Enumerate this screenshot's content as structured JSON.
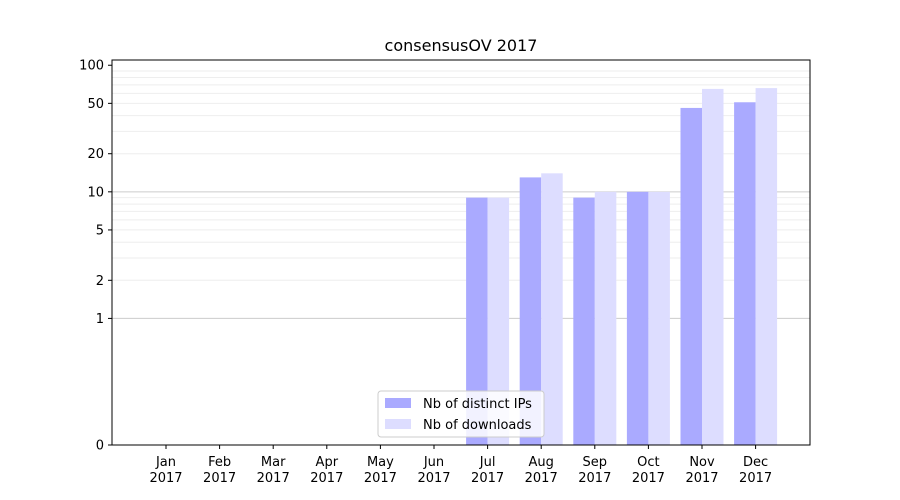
{
  "chart_data": {
    "type": "bar",
    "title": "consensusOV 2017",
    "xlabel": "",
    "ylabel": "",
    "yscale": "symlog",
    "ylim": [
      0,
      110
    ],
    "y_ticks": [
      0,
      1,
      2,
      5,
      10,
      20,
      50,
      100
    ],
    "y_tick_labels": [
      "0",
      "1",
      "2",
      "5",
      "10",
      "20",
      "50",
      "100"
    ],
    "categories": [
      [
        "Jan",
        "2017"
      ],
      [
        "Feb",
        "2017"
      ],
      [
        "Mar",
        "2017"
      ],
      [
        "Apr",
        "2017"
      ],
      [
        "May",
        "2017"
      ],
      [
        "Jun",
        "2017"
      ],
      [
        "Jul",
        "2017"
      ],
      [
        "Aug",
        "2017"
      ],
      [
        "Sep",
        "2017"
      ],
      [
        "Oct",
        "2017"
      ],
      [
        "Nov",
        "2017"
      ],
      [
        "Dec",
        "2017"
      ]
    ],
    "series": [
      {
        "name": "Nb of distinct IPs",
        "color": "#aaaaff",
        "values": [
          0,
          0,
          0,
          0,
          0,
          0,
          9,
          13,
          9,
          10,
          46,
          51
        ]
      },
      {
        "name": "Nb of downloads",
        "color": "#ddddff",
        "values": [
          0,
          0,
          0,
          0,
          0,
          0,
          9,
          14,
          10,
          10,
          65,
          66
        ]
      }
    ],
    "grid": "y-major-and-minor",
    "legend_position": "bottom-center"
  }
}
